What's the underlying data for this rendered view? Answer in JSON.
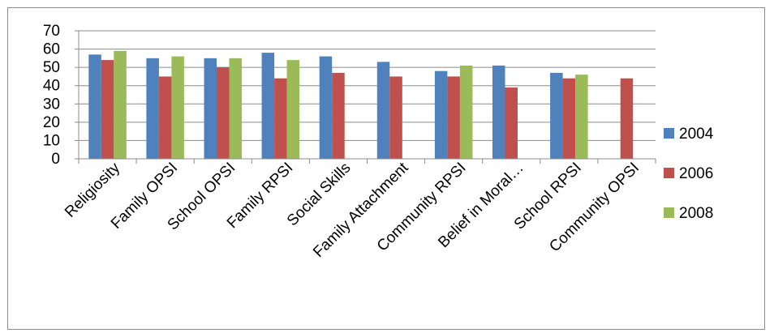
{
  "chart_data": {
    "type": "bar",
    "categories": [
      "Religiosity",
      "Family OPSI",
      "School OPSI",
      "Family RPSI",
      "Social Skills",
      "Family Attachment",
      "Community RPSI",
      "Belief in Moral…",
      "School RPSI",
      "Community OPSI"
    ],
    "series": [
      {
        "name": "2004",
        "color": "#4f81bd",
        "values": [
          57,
          55,
          55,
          58,
          56,
          53,
          48,
          51,
          47,
          null
        ]
      },
      {
        "name": "2006",
        "color": "#c0504d",
        "values": [
          54,
          45,
          50,
          44,
          47,
          45,
          45,
          39,
          44,
          44
        ]
      },
      {
        "name": "2008",
        "color": "#9bbb59",
        "values": [
          59,
          56,
          55,
          54,
          null,
          null,
          51,
          null,
          46,
          null
        ]
      }
    ],
    "ylim": [
      0,
      70
    ],
    "yticks": [
      "0",
      "10",
      "20",
      "30",
      "40",
      "50",
      "60",
      "70"
    ],
    "grid": true,
    "legend_position": "right"
  }
}
